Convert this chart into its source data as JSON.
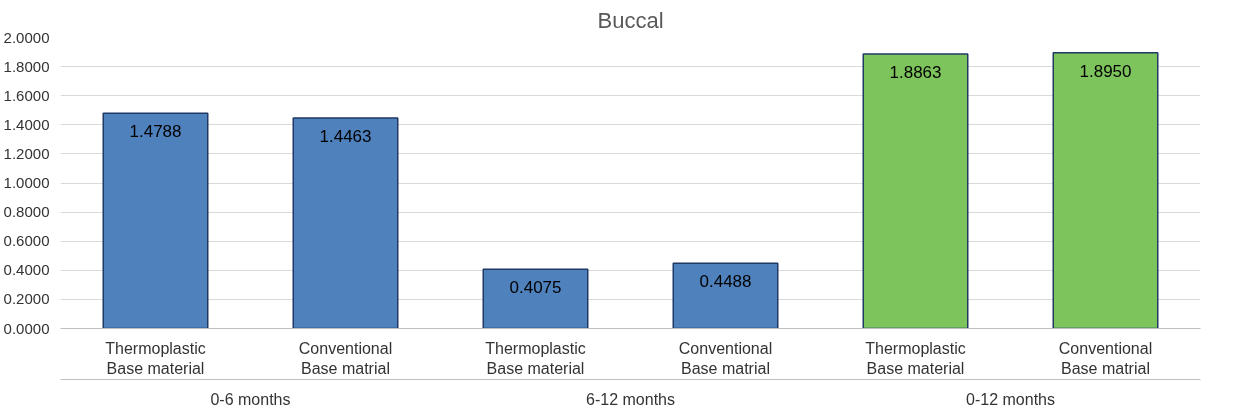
{
  "chart_data": {
    "type": "bar",
    "title": "Buccal",
    "categories": [
      "Thermoplastic Base material",
      "Conventional Base matrial",
      "Thermoplastic Base material",
      "Conventional Base matrial",
      "Thermoplastic Base material",
      "Conventional Base matrial"
    ],
    "values": [
      1.4788,
      1.4463,
      0.4075,
      0.4488,
      1.8863,
      1.895
    ],
    "colors": [
      "#4f81bd",
      "#4f81bd",
      "#4f81bd",
      "#4f81bd",
      "#7ec45c",
      "#7ec45c"
    ],
    "value_labels": [
      "1.4788",
      "1.4463",
      "0.4075",
      "0.4488",
      "1.8863",
      "1.8950"
    ],
    "ylim": [
      0,
      2
    ],
    "yticks": [
      {
        "value": 0,
        "label": "0.0000"
      },
      {
        "value": 0.2,
        "label": "0.2000"
      },
      {
        "value": 0.4,
        "label": "0.4000"
      },
      {
        "value": 0.6,
        "label": "0.6000"
      },
      {
        "value": 0.8,
        "label": "0.8000"
      },
      {
        "value": 1.0,
        "label": "1.0000"
      },
      {
        "value": 1.2,
        "label": "1.2000"
      },
      {
        "value": 1.4,
        "label": "1.4000"
      },
      {
        "value": 1.6,
        "label": "1.6000"
      },
      {
        "value": 1.8,
        "label": "1.8000"
      },
      {
        "value": 2.0,
        "label": "2.0000"
      }
    ],
    "grid": "y",
    "annotations": [
      "0-6 months",
      "6-12 months",
      "0-12 months"
    ]
  }
}
